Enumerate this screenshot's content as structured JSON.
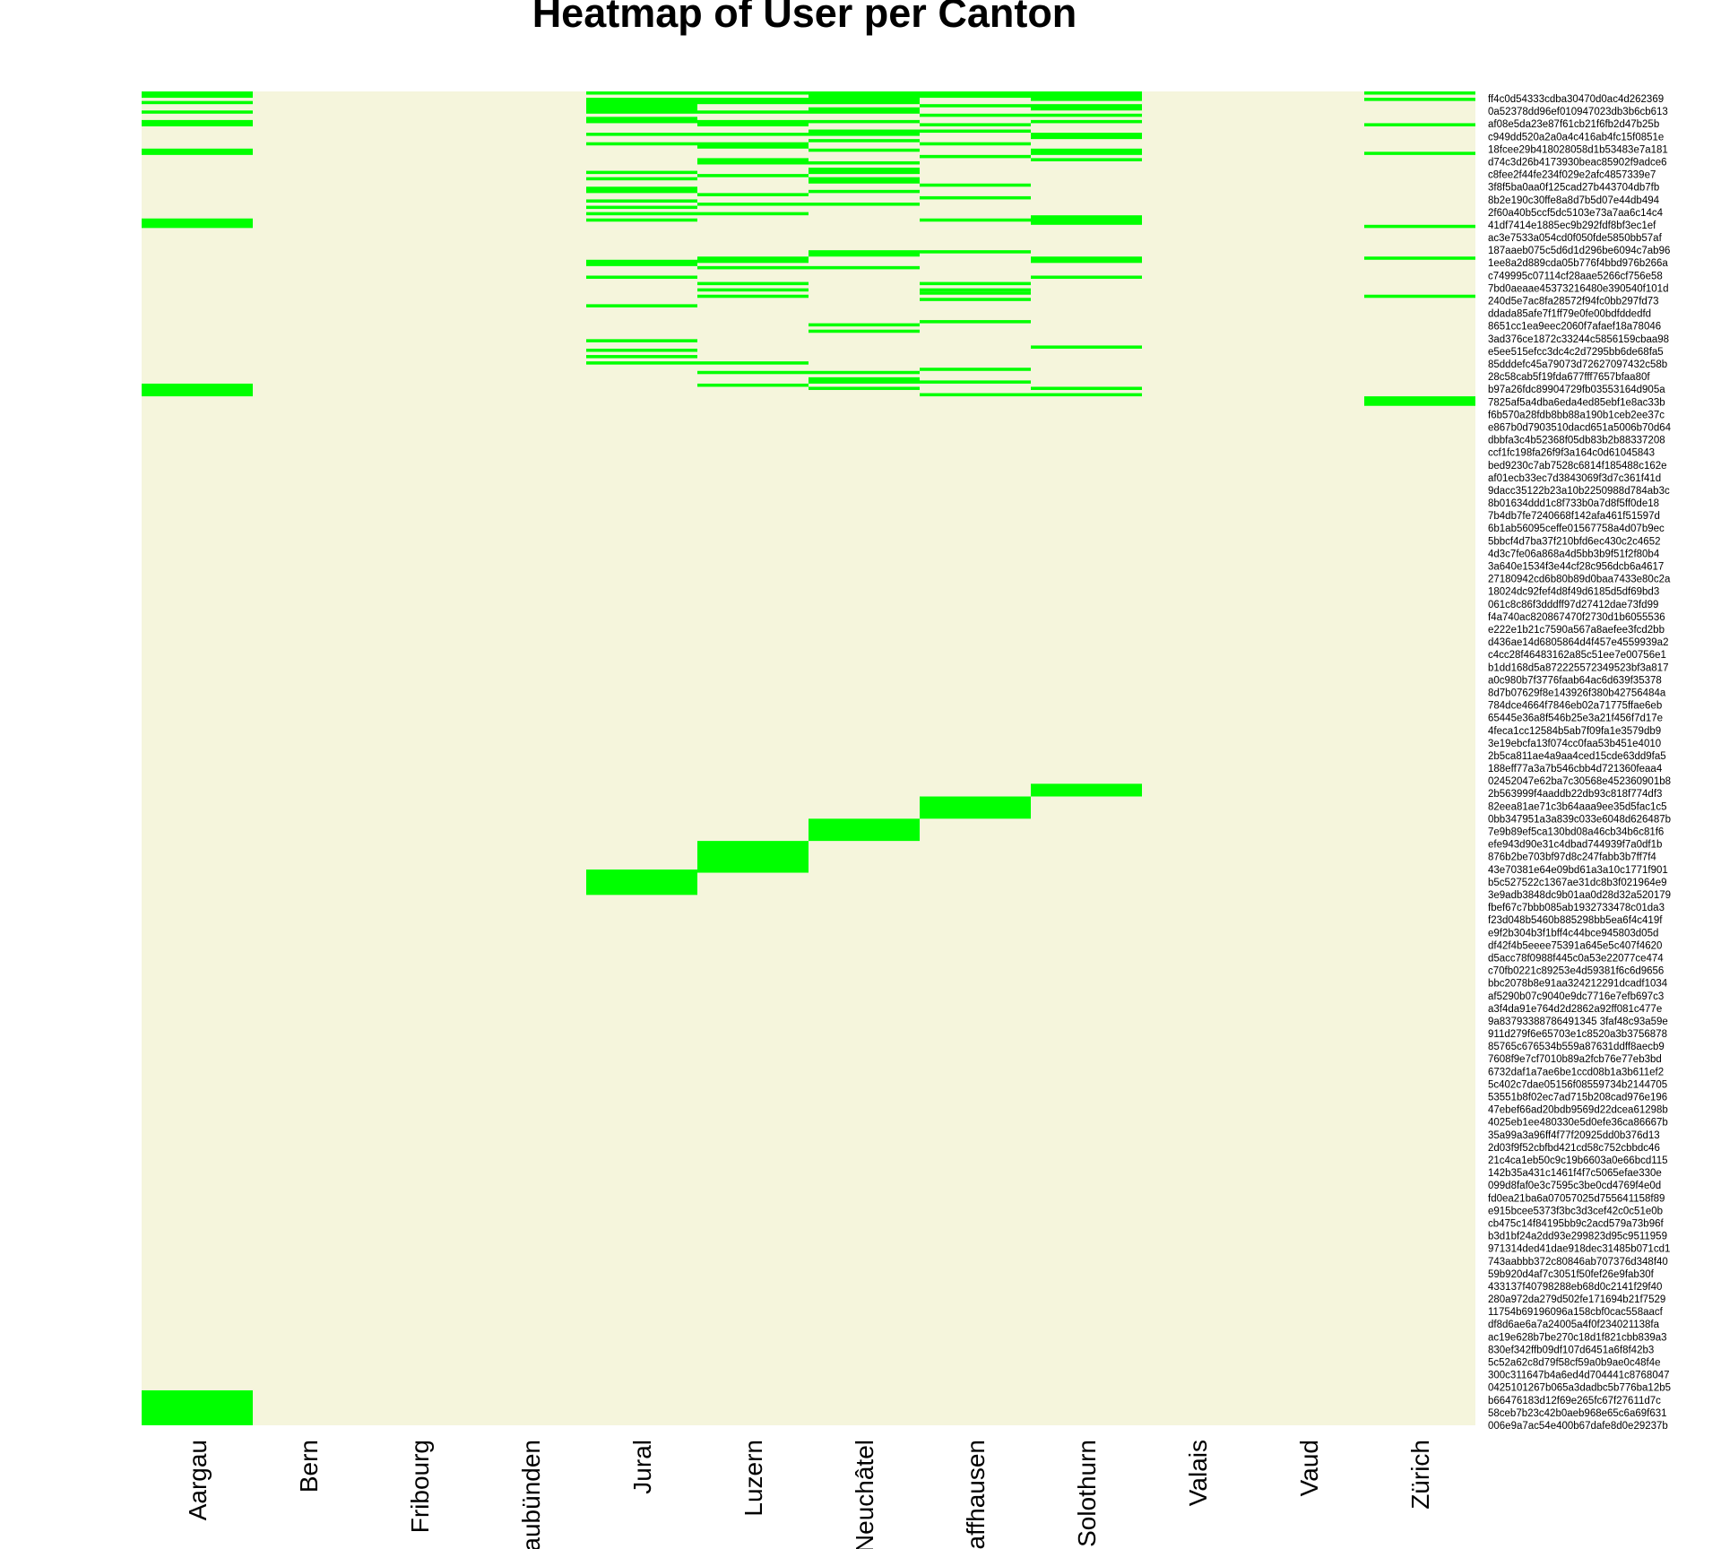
{
  "chart_data": {
    "type": "heatmap",
    "title": "Heatmap of User per Canton",
    "x_categories": [
      "Aargau",
      "Bern",
      "Fribourg",
      "Graubünden",
      "Jural",
      "Luzern",
      "Neuchâtel",
      "Schaffhausen",
      "Solothurn",
      "Valais",
      "Vaud",
      "Zürich"
    ],
    "y_labels": [
      "ff4c0d54333cdba30470d0ac4d262369",
      "0a52378dd96ef010947023db3b6cb613",
      "af08e5da23e87f61cb21f6fb2d47b25b",
      "c949dd520a2a0a4c416ab4fc15f0851e",
      "18fcee29b418028058d1b53483e7a181",
      "d74c3d26b4173930beac85902f9adce6",
      "c8fee2f44fe234f029e2afc4857339e7",
      "3f8f5ba0aa0f125cad27b443704db7fb",
      "8b2e190c30ffe8a8d7b5d07e44db494",
      "2f60a40b5ccf5dc5103e73a7aa6c14c4",
      "41df7414e1885ec9b292fdf8bf3ec1ef",
      "ac3e7533a054cd0f050fde5850bb57af",
      "187aaeb075c5d6d1d296be6094c7ab96",
      "1ee8a2d889cda05b776f4bbd976b266a",
      "c749995c07114cf28aae5266cf756e58",
      "7bd0aeaae45373216480e390540f101d",
      "240d5e7ac8fa28572f94fc0bb297fd73",
      "ddada85afe7f1ff79e0fe00bdfddedfd",
      "8651cc1ea9eec2060f7afaef18a78046",
      "3ad376ce1872c33244c5856159cbaa98",
      "e5ee515efcc3dc4c2d7295bb6de68fa5",
      "85dddefc45a79073d72627097432c58b",
      "28c58cab5f19fda677fff7657bfaa80f",
      "b97a26fdc89904729fb03553164d905a",
      "7825af5a4dba6eda4ed85ebf1e8ac33b",
      "f6b570a28fdb8bb88a190b1ceb2ee37c",
      "e867b0d7903510dacd651a5006b70d64",
      "dbbfa3c4b52368f05db83b2b88337208",
      "ccf1fc198fa26f9f3a164c0d61045843",
      "bed9230c7ab7528c6814f185488c162e",
      "af01ecb33ec7d3843069f3d7c361f41d",
      "9dacc35122b23a10b2250988d784ab3c",
      "8b01634ddd1c8f733b0a7d8f5ff0de18",
      "7b4db7fe7240668f142afa461f51597d",
      "6b1ab56095ceffe01567758a4d07b9ec",
      "5bbcf4d7ba37f210bfd6ec430c2c4652",
      "4d3c7fe06a868a4d5bb3b9f51f2f80b4",
      "3a640e1534f3e44cf28c956dcb6a4617",
      "27180942cd6b80b89d0baa7433e80c2a",
      "18024dc92fef4d8f49d6185d5df69bd3",
      "061c8c86f3dddff97d27412dae73fd99",
      "f4a740ac820867470f2730d1b6055536",
      "e222e1b21c7590a567a8aefee3fcd2bb",
      "d436ae14d6805864d4f457e4559939a2",
      "c4cc28f46483162a85c51ee7e00756e1",
      "b1dd168d5a872225572349523bf3a817",
      "a0c980b7f3776faab64ac6d639f35378",
      "8d7b07629f8e143926f380b42756484a",
      "784dce4664f7846eb02a71775ffae6eb",
      "65445e36a8f546b25e3a21f456f7d17e",
      "4feca1cc12584b5ab7f09fa1e3579db9",
      "3e19ebcfa13f074cc0faa53b451e4010",
      "2b5ca811ae4a9aa4ced15cde63dd9fa5",
      "188eff77a3a7b546cbb4d721360feaa4",
      "02452047e62ba7c30568e452360901b8",
      "2b563999f4aaddb22db93c818f774df3",
      "82eea81ae71c3b64aaa9ee35d5fac1c5",
      "0bb347951a3a839c033e6048d626487b",
      "7e9b89ef5ca130bd08a46cb34b6c81f6",
      "efe943d90e31c4dbad744939f7a0df1b",
      "876b2be703bf97d8c247fabb3b7ff7f4",
      "43e70381e64e09bd61a3a10c1771f901",
      "b5c527522c1367ae31dc8b3f021964e9",
      "3e9adb3848dc9b01aa0d28d32a520179",
      "fbef67c7bbb085ab1932733478c01da3",
      "f23d048b5460b885298bb5ea6f4c419f",
      "e9f2b304b3f1bff4c44bce945803d05d",
      "df42f4b5eeee75391a645e5c407f4620",
      "d5acc78f0988f445c0a53e22077ce474",
      "c70fb0221c89253e4d59381f6c6d9656",
      "bbc2078b8e91aa324212291dcadf1034",
      "af5290b07c9040e9dc7716e7efb697c3",
      "a3f4da91e764d2d2862a92ff081c477e",
      "9a83793388786491345 3faf48c93a59e",
      "911d279f6e65703e1c8520a3b3756878",
      "85765c676534b559a87631ddff8aecb9",
      "7608f9e7cf7010b89a2fcb76e77eb3bd",
      "6732daf1a7ae6be1ccd08b1a3b611ef2",
      "5c402c7dae05156f08559734b2144705",
      "53551b8f02ec7ad715b208cad976e196",
      "47ebef66ad20bdb9569d22dcea61298b",
      "4025eb1ee480330e5d0efe36ca86667b",
      "35a99a3a96ff4f77f20925dd0b376d13",
      "2d03f9f52cbfbd421cd58c752cbbdc46",
      "21c4ca1eb50c9c19b6603a0e66bcd115",
      "142b35a431c1461f4f7c5065efae330e",
      "099d8faf0e3c7595c3be0cd4769f4e0d",
      "fd0ea21ba6a07057025d755641158f89",
      "e915bcee5373f3bc3d3cef42c0c51e0b",
      "cb475c14f84195bb9c2acd579a73b96f",
      "b3d1bf24a2dd93e299823d95c9511959",
      "971314ded41dae918dec31485b071cd1",
      "743aabbb372c80846ab707376d348f40",
      "59b920d4af7c3051f50fef26e9fab30f",
      "433137f40798288eb68d0c2141f29f40",
      "280a972da279d502fe171694b21f7529",
      "11754b69196096a158cbf0cac558aacf",
      "df8d6ae6a7a24005a4f0f234021138fa",
      "ac19e628b7be270c18d1f821cbb839a3",
      "830ef342ffb09df107d6451a6f8f42b3",
      "5c52a62c8d79f58cf59a0b9ae0c48f4e",
      "300c311647b4a6ed4d704441c8768047",
      "0425101267b065a3dadbc5b776ba12b5",
      "b66476183d12f69e265fc67f27611d7c",
      "58ceb7b23c42b0aeb968e65c6a69f631",
      "006e9a7ac54e400b67dafe8d0e29237b"
    ],
    "grid_rows": 420,
    "colors": {
      "low": "#f5f5dc",
      "high": "#00ff00"
    },
    "cells": [
      {
        "col": 0,
        "rows": [
          [
            0,
            1
          ],
          [
            3,
            3
          ],
          [
            6,
            6
          ],
          [
            9,
            10
          ],
          [
            18,
            19
          ],
          [
            40,
            42
          ],
          [
            92,
            95
          ],
          [
            409,
            419
          ]
        ]
      },
      {
        "col": 4,
        "rows": [
          [
            0,
            0
          ],
          [
            2,
            6
          ],
          [
            8,
            9
          ],
          [
            13,
            13
          ],
          [
            16,
            16
          ],
          [
            25,
            25
          ],
          [
            27,
            27
          ],
          [
            30,
            31
          ],
          [
            34,
            34
          ],
          [
            36,
            36
          ],
          [
            38,
            38
          ],
          [
            40,
            40
          ],
          [
            53,
            54
          ],
          [
            58,
            58
          ],
          [
            67,
            67
          ],
          [
            78,
            78
          ],
          [
            81,
            81
          ],
          [
            83,
            83
          ],
          [
            85,
            85
          ],
          [
            245,
            252
          ]
        ]
      },
      {
        "col": 5,
        "rows": [
          [
            0,
            0
          ],
          [
            2,
            3
          ],
          [
            6,
            6
          ],
          [
            9,
            10
          ],
          [
            13,
            13
          ],
          [
            16,
            17
          ],
          [
            21,
            22
          ],
          [
            26,
            26
          ],
          [
            32,
            32
          ],
          [
            35,
            35
          ],
          [
            38,
            38
          ],
          [
            52,
            53
          ],
          [
            55,
            55
          ],
          [
            60,
            60
          ],
          [
            62,
            62
          ],
          [
            64,
            64
          ],
          [
            85,
            85
          ],
          [
            88,
            88
          ],
          [
            92,
            92
          ],
          [
            236,
            245
          ]
        ]
      },
      {
        "col": 6,
        "rows": [
          [
            0,
            3
          ],
          [
            5,
            6
          ],
          [
            9,
            9
          ],
          [
            12,
            13
          ],
          [
            15,
            15
          ],
          [
            18,
            18
          ],
          [
            22,
            22
          ],
          [
            24,
            25
          ],
          [
            27,
            28
          ],
          [
            31,
            31
          ],
          [
            35,
            35
          ],
          [
            50,
            51
          ],
          [
            55,
            55
          ],
          [
            73,
            73
          ],
          [
            75,
            75
          ],
          [
            88,
            88
          ],
          [
            90,
            91
          ],
          [
            93,
            93
          ],
          [
            229,
            235
          ]
        ]
      },
      {
        "col": 7,
        "rows": [
          [
            0,
            1
          ],
          [
            4,
            4
          ],
          [
            7,
            7
          ],
          [
            10,
            10
          ],
          [
            12,
            12
          ],
          [
            16,
            16
          ],
          [
            20,
            20
          ],
          [
            29,
            29
          ],
          [
            33,
            33
          ],
          [
            40,
            40
          ],
          [
            50,
            50
          ],
          [
            60,
            60
          ],
          [
            62,
            62
          ],
          [
            63,
            63
          ],
          [
            65,
            65
          ],
          [
            72,
            72
          ],
          [
            87,
            87
          ],
          [
            91,
            91
          ],
          [
            95,
            95
          ],
          [
            222,
            228
          ]
        ]
      },
      {
        "col": 8,
        "rows": [
          [
            0,
            2
          ],
          [
            4,
            5
          ],
          [
            7,
            7
          ],
          [
            9,
            9
          ],
          [
            13,
            14
          ],
          [
            18,
            19
          ],
          [
            21,
            21
          ],
          [
            39,
            41
          ],
          [
            52,
            53
          ],
          [
            58,
            58
          ],
          [
            80,
            80
          ],
          [
            93,
            93
          ],
          [
            95,
            95
          ],
          [
            218,
            221
          ]
        ]
      },
      {
        "col": 11,
        "rows": [
          [
            0,
            0
          ],
          [
            2,
            2
          ],
          [
            10,
            10
          ],
          [
            19,
            19
          ],
          [
            42,
            42
          ],
          [
            52,
            52
          ],
          [
            64,
            64
          ],
          [
            96,
            98
          ]
        ]
      }
    ]
  }
}
